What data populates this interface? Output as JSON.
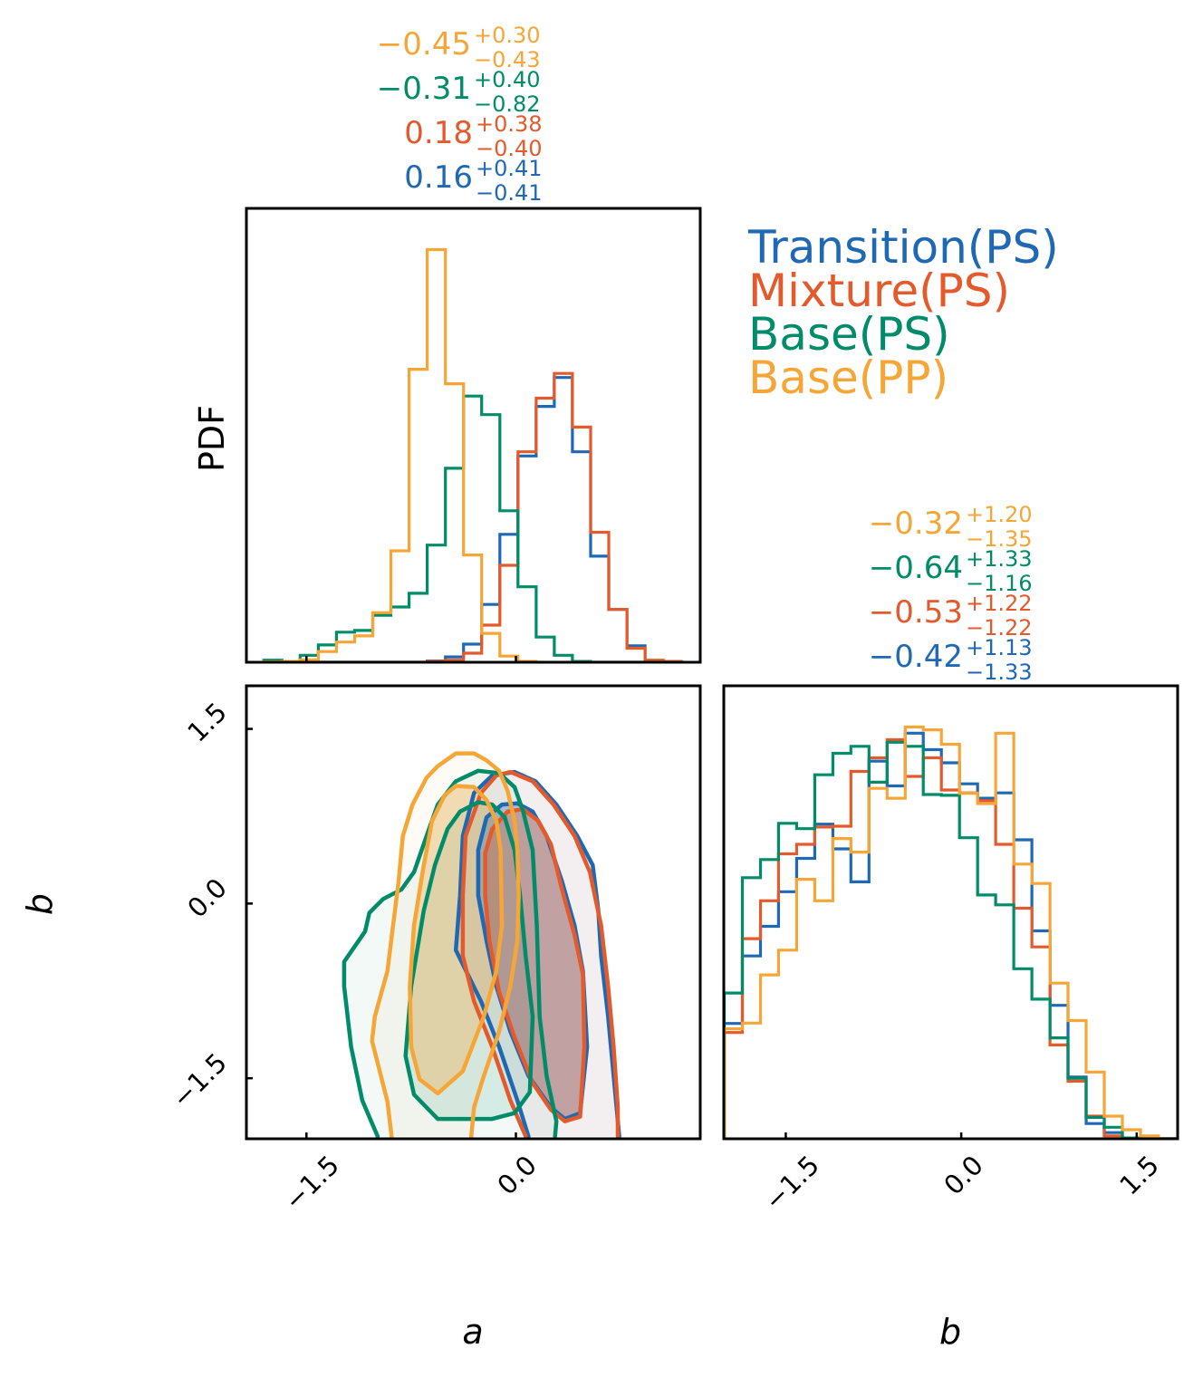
{
  "chart_data": {
    "type": "corner",
    "title": "",
    "parameters": [
      "a",
      "b"
    ],
    "series": [
      {
        "name": "Transition(PS)",
        "color": "#1f69b4"
      },
      {
        "name": "Mixture(PS)",
        "color": "#e35a2c"
      },
      {
        "name": "Base(PS)",
        "color": "#008c68"
      },
      {
        "name": "Base(PP)",
        "color": "#f5a637"
      }
    ],
    "legend": {
      "placement": "top-right",
      "entries": [
        "Transition(PS)",
        "Mixture(PS)",
        "Base(PS)",
        "Base(PP)"
      ]
    },
    "summary_stats": {
      "a": [
        {
          "series": "Base(PP)",
          "median": "−0.45",
          "plus": "+0.30",
          "minus": "−0.43"
        },
        {
          "series": "Base(PS)",
          "median": "−0.31",
          "plus": "+0.40",
          "minus": "−0.82"
        },
        {
          "series": "Mixture(PS)",
          "median": "0.18",
          "plus": "+0.38",
          "minus": "−0.40"
        },
        {
          "series": "Transition(PS)",
          "median": "0.16",
          "plus": "+0.41",
          "minus": "−0.41"
        }
      ],
      "b": [
        {
          "series": "Base(PP)",
          "median": "−0.32",
          "plus": "+1.20",
          "minus": "−1.35"
        },
        {
          "series": "Base(PS)",
          "median": "−0.64",
          "plus": "+1.33",
          "minus": "−1.16"
        },
        {
          "series": "Mixture(PS)",
          "median": "−0.53",
          "plus": "+1.22",
          "minus": "−1.22"
        },
        {
          "series": "Transition(PS)",
          "median": "−0.42",
          "plus": "+1.13",
          "minus": "−1.33"
        }
      ]
    },
    "hist_a": {
      "ylabel": "PDF",
      "xlim": [
        -1.93,
        1.32
      ],
      "ylim": [
        0,
        1.1
      ],
      "bin_start": -1.805,
      "bin_width": 0.13,
      "values": {
        "Transition(PS)": [
          0,
          0,
          0,
          0,
          0,
          0,
          0,
          0,
          0,
          0.003,
          0.013,
          0.044,
          0.14,
          0.31,
          0.5,
          0.62,
          0.69,
          0.51,
          0.257,
          0.128,
          0.04,
          0.004,
          0
        ],
        "Mixture(PS)": [
          0,
          0,
          0,
          0,
          0,
          0,
          0,
          0,
          0,
          0.002,
          0.005,
          0.022,
          0.09,
          0.235,
          0.51,
          0.64,
          0.7,
          0.57,
          0.315,
          0.128,
          0.034,
          0.005,
          0.002
        ],
        "Base(PS)": [
          0.005,
          0,
          0.017,
          0.042,
          0.073,
          0.077,
          0.114,
          0.134,
          0.167,
          0.284,
          0.47,
          0.645,
          0.6,
          0.367,
          0.183,
          0.061,
          0.017,
          0.002,
          0,
          0,
          0,
          0,
          0
        ],
        "Base(PP)": [
          0.001,
          0.002,
          0.006,
          0.026,
          0.049,
          0.064,
          0.12,
          0.27,
          0.71,
          1.0,
          0.675,
          0.26,
          0.07,
          0.015,
          0.002,
          0,
          0,
          0,
          0,
          0,
          0,
          0,
          0
        ]
      }
    },
    "hist_b": {
      "xlabel": "b",
      "xlim": [
        -2.03,
        1.85
      ],
      "ylim": [
        0,
        1.1
      ],
      "xticks": [
        "−1.5",
        "0.0",
        "1.5"
      ],
      "bin_start": -2.026,
      "bin_width": 0.1547,
      "values": {
        "Transition(PS)": [
          0.28,
          0.444,
          0.516,
          0.6,
          0.681,
          0.764,
          0.704,
          0.624,
          0.917,
          0.857,
          0.985,
          0.945,
          0.913,
          0.862,
          0.827,
          0.84,
          0.726,
          0.505,
          0.324,
          0.15,
          0.037,
          0.015,
          0.002,
          0,
          0
        ],
        "Mixture(PS)": [
          0.258,
          0.486,
          0.578,
          0.692,
          0.715,
          0.757,
          0.759,
          0.892,
          0.925,
          0.969,
          0.88,
          0.925,
          0.847,
          0.84,
          0.821,
          0.715,
          0.56,
          0.466,
          0.228,
          0.14,
          0.055,
          0.007,
          0.002,
          0,
          0
        ],
        "Base(PS)": [
          0.354,
          0.634,
          0.678,
          0.766,
          0.753,
          0.884,
          0.936,
          0.953,
          0.866,
          0.963,
          0.953,
          0.836,
          0.834,
          0.731,
          0.592,
          0.568,
          0.413,
          0.339,
          0.245,
          0.147,
          0.052,
          0.028,
          0.002,
          0,
          0
        ],
        "Base(PP)": [
          0.267,
          0.281,
          0.398,
          0.458,
          0.63,
          0.578,
          0.729,
          0.696,
          0.851,
          0.827,
          1.0,
          0.993,
          0.958,
          0.839,
          0.814,
          0.985,
          0.667,
          0.62,
          0.378,
          0.287,
          0.162,
          0.055,
          0.022,
          0.007,
          0
        ]
      }
    },
    "contour_ab": {
      "xlabel": "a",
      "ylabel": "b",
      "xlim": [
        -1.93,
        1.32
      ],
      "ylim": [
        -2.02,
        1.87
      ],
      "xticks": [
        "−1.5",
        "0.0"
      ],
      "yticks": [
        "−1.5",
        "0.0",
        "1.5"
      ],
      "levels": [
        "inner",
        "outer"
      ],
      "contours": {
        "Base(PP)": {
          "outer": [
            [
              -0.89,
              -2.0
            ],
            [
              -0.92,
              -1.7
            ],
            [
              -1.03,
              -1.18
            ],
            [
              -1.01,
              -0.97
            ],
            [
              -0.92,
              -0.58
            ],
            [
              -0.88,
              -0.19
            ],
            [
              -0.84,
              0.19
            ],
            [
              -0.81,
              0.58
            ],
            [
              -0.74,
              0.85
            ],
            [
              -0.64,
              1.08
            ],
            [
              -0.56,
              1.18
            ],
            [
              -0.43,
              1.29
            ],
            [
              -0.3,
              1.29
            ],
            [
              -0.21,
              1.23
            ],
            [
              -0.12,
              1.14
            ],
            [
              -0.06,
              0.97
            ],
            [
              -0.01,
              0.71
            ],
            [
              0.01,
              0.46
            ],
            [
              0.02,
              0.07
            ],
            [
              0.01,
              -0.32
            ],
            [
              -0.04,
              -0.71
            ],
            [
              -0.12,
              -1.1
            ],
            [
              -0.23,
              -1.48
            ],
            [
              -0.3,
              -1.75
            ],
            [
              -0.32,
              -2.0
            ]
          ],
          "inner": [
            [
              -0.43,
              1.01
            ],
            [
              -0.3,
              1.0
            ],
            [
              -0.21,
              0.89
            ],
            [
              -0.14,
              0.71
            ],
            [
              -0.11,
              0.46
            ],
            [
              -0.1,
              -0.19
            ],
            [
              -0.14,
              -0.58
            ],
            [
              -0.23,
              -0.97
            ],
            [
              -0.38,
              -1.44
            ],
            [
              -0.56,
              -1.63
            ],
            [
              -0.69,
              -1.51
            ],
            [
              -0.75,
              -1.23
            ],
            [
              -0.76,
              -0.71
            ],
            [
              -0.73,
              -0.19
            ],
            [
              -0.66,
              0.33
            ],
            [
              -0.6,
              0.71
            ],
            [
              -0.51,
              0.93
            ],
            [
              -0.43,
              1.01
            ]
          ]
        },
        "Base(PS)": {
          "outer": [
            [
              -0.99,
              -2.0
            ],
            [
              -1.1,
              -1.69
            ],
            [
              -1.18,
              -1.23
            ],
            [
              -1.23,
              -0.71
            ],
            [
              -1.23,
              -0.5
            ],
            [
              -1.08,
              -0.24
            ],
            [
              -1.05,
              -0.08
            ],
            [
              -0.95,
              0.04
            ],
            [
              -0.82,
              0.12
            ],
            [
              -0.73,
              0.27
            ],
            [
              -0.64,
              0.58
            ],
            [
              -0.56,
              0.85
            ],
            [
              -0.43,
              1.05
            ],
            [
              -0.27,
              1.14
            ],
            [
              -0.12,
              1.12
            ],
            [
              -0.01,
              1.0
            ],
            [
              0.05,
              0.8
            ],
            [
              0.12,
              0.46
            ],
            [
              0.15,
              -0.19
            ],
            [
              0.17,
              -0.97
            ],
            [
              0.22,
              -1.48
            ],
            [
              0.29,
              -1.87
            ],
            [
              0.28,
              -2.0
            ]
          ],
          "inner": [
            [
              -0.27,
              0.87
            ],
            [
              -0.17,
              0.85
            ],
            [
              -0.08,
              0.74
            ],
            [
              -0.01,
              0.46
            ],
            [
              0.03,
              0.07
            ],
            [
              0.07,
              -0.45
            ],
            [
              0.12,
              -0.97
            ],
            [
              0.1,
              -1.62
            ],
            [
              -0.01,
              -1.8
            ],
            [
              -0.17,
              -1.85
            ],
            [
              -0.56,
              -1.85
            ],
            [
              -0.73,
              -1.64
            ],
            [
              -0.79,
              -1.31
            ],
            [
              -0.75,
              -0.71
            ],
            [
              -0.66,
              -0.06
            ],
            [
              -0.58,
              0.33
            ],
            [
              -0.49,
              0.64
            ],
            [
              -0.4,
              0.79
            ],
            [
              -0.27,
              0.87
            ]
          ]
        },
        "Transition(PS)": {
          "outer": [
            [
              0.09,
              -2.0
            ],
            [
              0.01,
              -1.69
            ],
            [
              -0.12,
              -1.23
            ],
            [
              -0.25,
              -0.84
            ],
            [
              -0.43,
              -0.4
            ],
            [
              -0.4,
              0.07
            ],
            [
              -0.38,
              0.58
            ],
            [
              -0.3,
              0.95
            ],
            [
              -0.17,
              1.1
            ],
            [
              -0.01,
              1.13
            ],
            [
              0.14,
              1.05
            ],
            [
              0.29,
              0.85
            ],
            [
              0.44,
              0.58
            ],
            [
              0.55,
              0.33
            ],
            [
              0.59,
              -0.06
            ],
            [
              0.61,
              -0.45
            ],
            [
              0.66,
              -0.97
            ],
            [
              0.7,
              -1.48
            ],
            [
              0.74,
              -2.0
            ]
          ],
          "inner": [
            [
              -0.21,
              0.74
            ],
            [
              -0.1,
              0.85
            ],
            [
              0.01,
              0.86
            ],
            [
              0.12,
              0.79
            ],
            [
              0.22,
              0.58
            ],
            [
              0.33,
              0.19
            ],
            [
              0.42,
              -0.19
            ],
            [
              0.48,
              -0.58
            ],
            [
              0.51,
              -1.23
            ],
            [
              0.46,
              -1.8
            ],
            [
              0.35,
              -1.85
            ],
            [
              0.25,
              -1.75
            ],
            [
              0.09,
              -1.48
            ],
            [
              -0.04,
              -1.1
            ],
            [
              -0.14,
              -0.71
            ],
            [
              -0.21,
              -0.32
            ],
            [
              -0.27,
              0.07
            ],
            [
              -0.27,
              0.46
            ],
            [
              -0.21,
              0.74
            ]
          ]
        },
        "Mixture(PS)": {
          "outer": [
            [
              0.07,
              -2.0
            ],
            [
              -0.04,
              -1.69
            ],
            [
              -0.17,
              -1.23
            ],
            [
              -0.3,
              -0.84
            ],
            [
              -0.38,
              -0.45
            ],
            [
              -0.38,
              0.07
            ],
            [
              -0.36,
              0.58
            ],
            [
              -0.25,
              0.95
            ],
            [
              -0.14,
              1.1
            ],
            [
              -0.04,
              1.13
            ],
            [
              0.12,
              1.05
            ],
            [
              0.27,
              0.85
            ],
            [
              0.42,
              0.58
            ],
            [
              0.53,
              0.27
            ],
            [
              0.61,
              -0.19
            ],
            [
              0.66,
              -0.71
            ],
            [
              0.7,
              -1.23
            ],
            [
              0.73,
              -1.75
            ],
            [
              0.73,
              -2.0
            ]
          ],
          "inner": [
            [
              -0.17,
              0.64
            ],
            [
              -0.06,
              0.79
            ],
            [
              0.05,
              0.81
            ],
            [
              0.16,
              0.71
            ],
            [
              0.25,
              0.51
            ],
            [
              0.33,
              0.12
            ],
            [
              0.42,
              -0.27
            ],
            [
              0.48,
              -0.61
            ],
            [
              0.49,
              -1.23
            ],
            [
              0.46,
              -1.83
            ],
            [
              0.35,
              -1.87
            ],
            [
              0.25,
              -1.77
            ],
            [
              0.12,
              -1.54
            ],
            [
              -0.01,
              -1.15
            ],
            [
              -0.12,
              -0.76
            ],
            [
              -0.19,
              -0.32
            ],
            [
              -0.22,
              0.07
            ],
            [
              -0.22,
              0.43
            ],
            [
              -0.17,
              0.64
            ]
          ]
        }
      }
    }
  }
}
